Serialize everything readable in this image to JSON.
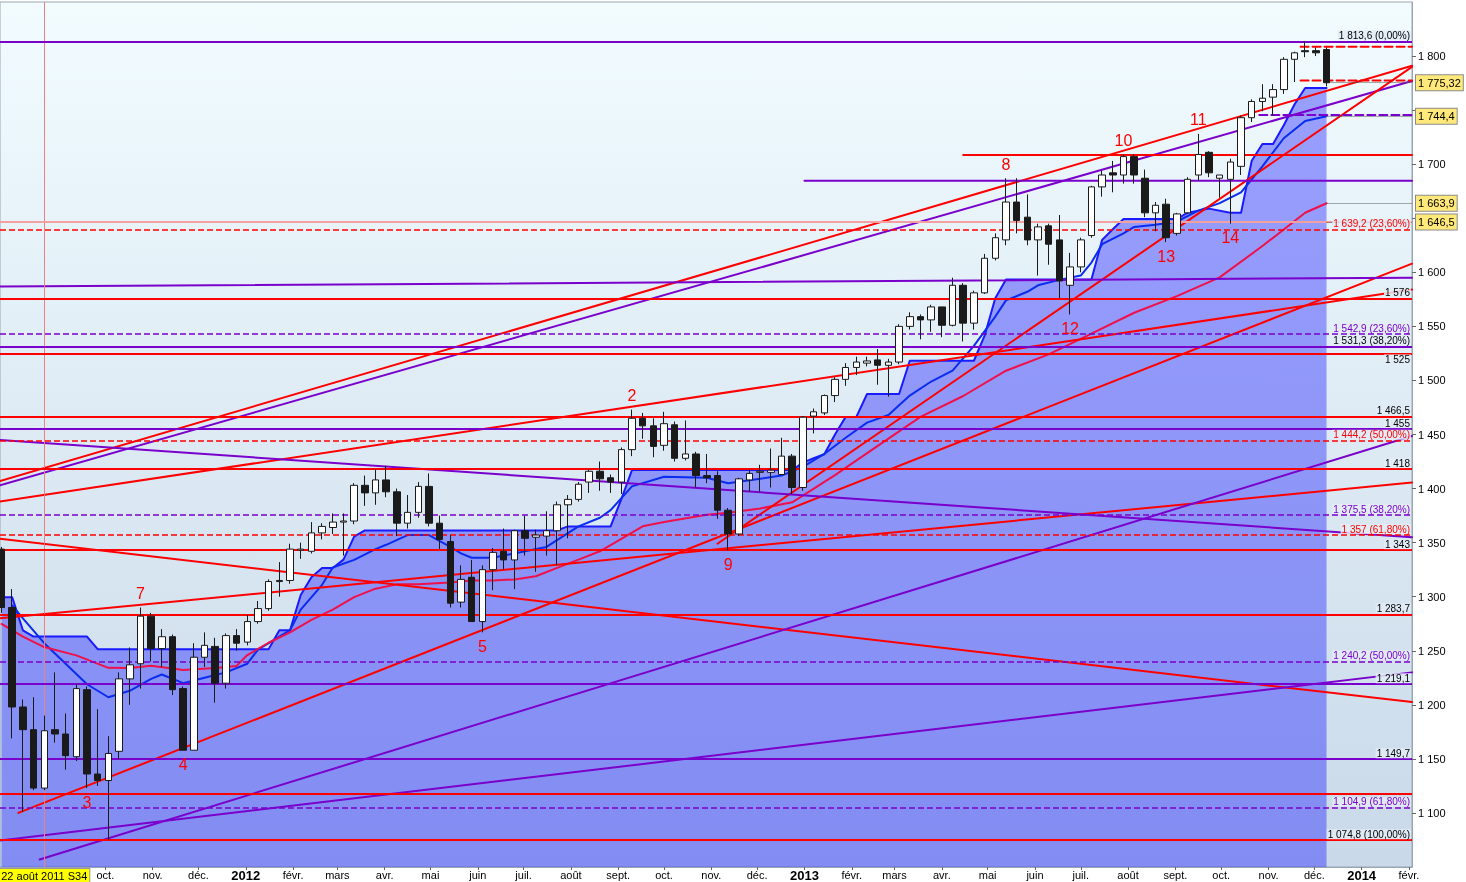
{
  "chart_data": {
    "type": "candlestick",
    "marker": "none",
    "xlim": [
      "2011-07-24",
      "2014-02-03"
    ],
    "xticks": [
      {
        "value": "2011-10-01",
        "label": "oct."
      },
      {
        "value": "2011-11-01",
        "label": "nov."
      },
      {
        "value": "2011-12-01",
        "label": "déc."
      },
      {
        "value": "2012-01-01",
        "label": "2012"
      },
      {
        "value": "2012-02-01",
        "label": "févr."
      },
      {
        "value": "2012-03-01",
        "label": "mars"
      },
      {
        "value": "2012-04-01",
        "label": "avr."
      },
      {
        "value": "2012-05-01",
        "label": "mai"
      },
      {
        "value": "2012-06-01",
        "label": "juin"
      },
      {
        "value": "2012-07-01",
        "label": "juil."
      },
      {
        "value": "2012-08-01",
        "label": "août"
      },
      {
        "value": "2012-09-01",
        "label": "sept."
      },
      {
        "value": "2012-10-01",
        "label": "oct."
      },
      {
        "value": "2012-11-01",
        "label": "nov."
      },
      {
        "value": "2012-12-01",
        "label": "déc."
      },
      {
        "value": "2013-01-01",
        "label": "2013"
      },
      {
        "value": "2013-02-01",
        "label": "févr."
      },
      {
        "value": "2013-03-01",
        "label": "mars"
      },
      {
        "value": "2013-04-01",
        "label": "avr."
      },
      {
        "value": "2013-05-01",
        "label": "mai"
      },
      {
        "value": "2013-06-01",
        "label": "juin"
      },
      {
        "value": "2013-07-01",
        "label": "juil."
      },
      {
        "value": "2013-08-01",
        "label": "août"
      },
      {
        "value": "2013-09-01",
        "label": "sept."
      },
      {
        "value": "2013-10-01",
        "label": "oct."
      },
      {
        "value": "2013-11-01",
        "label": "nov."
      },
      {
        "value": "2013-12-01",
        "label": "déc."
      },
      {
        "value": "2014-01-01",
        "label": "2014"
      },
      {
        "value": "2014-02-01",
        "label": "févr."
      }
    ],
    "ylim": [
      1050,
      1850
    ],
    "yticks": [
      {
        "value": 1100,
        "label": "1 100"
      },
      {
        "value": 1150,
        "label": "1 150"
      },
      {
        "value": 1200,
        "label": "1 200"
      },
      {
        "value": 1250,
        "label": "1 250"
      },
      {
        "value": 1300,
        "label": "1 300"
      },
      {
        "value": 1350,
        "label": "1 350"
      },
      {
        "value": 1400,
        "label": "1 400"
      },
      {
        "value": 1450,
        "label": "1 450"
      },
      {
        "value": 1500,
        "label": "1 500"
      },
      {
        "value": 1550,
        "label": "1 550"
      },
      {
        "value": 1600,
        "label": "1 600"
      },
      {
        "value": 1650,
        "label": null
      },
      {
        "value": 1700,
        "label": "1 700"
      },
      {
        "value": 1750,
        "label": null
      },
      {
        "value": 1800,
        "label": "1 800"
      }
    ],
    "series": [
      {
        "type": "area",
        "color": "#1a1aff",
        "x": [
          "2011-07-25",
          "2011-08-01",
          "2011-08-08",
          "2011-08-15",
          "2011-09-19",
          "2011-09-26",
          "2012-01-16",
          "2012-01-23",
          "2012-01-30",
          "2012-02-06",
          "2012-02-13",
          "2012-02-20",
          "2012-02-27",
          "2012-03-05",
          "2012-03-12",
          "2012-03-19",
          "2012-07-23",
          "2012-07-30",
          "2012-08-27",
          "2012-09-03",
          "2012-09-10",
          "2012-12-24",
          "2012-12-31",
          "2013-01-07",
          "2013-01-14",
          "2013-01-21",
          "2013-01-28",
          "2013-02-04",
          "2013-02-11",
          "2013-03-04",
          "2013-03-11",
          "2013-04-22",
          "2013-04-29",
          "2013-05-06",
          "2013-05-13",
          "2013-07-08",
          "2013-07-15",
          "2013-07-22",
          "2013-07-29",
          "2013-09-02",
          "2013-09-09",
          "2013-09-23",
          "2013-10-07",
          "2013-10-14",
          "2013-10-21",
          "2013-10-28",
          "2013-11-04",
          "2013-11-11",
          "2013-11-18",
          "2013-11-25",
          "2013-12-09"
        ],
        "values": [
          1299.5,
          1299.5,
          1268.9,
          1263.1,
          1263.1,
          1251.5,
          1251.5,
          1268.9,
          1268.9,
          1301.6,
          1318,
          1326.6,
          1326.6,
          1334.3,
          1355.5,
          1361.3,
          1361.3,
          1365,
          1365,
          1390.1,
          1417.1,
          1417.1,
          1424,
          1428,
          1431.7,
          1450,
          1466.3,
          1466.3,
          1487.5,
          1487.5,
          1518.2,
          1518.2,
          1541.4,
          1576.1,
          1593.4,
          1593.4,
          1630,
          1639.9,
          1649.3,
          1649.3,
          1655.1,
          1658.9,
          1655,
          1655,
          1703.2,
          1718.6,
          1718.6,
          1736,
          1755.2,
          1770.5,
          1770.5
        ]
      },
      {
        "type": "line",
        "color": "#0a2cf0",
        "x": [
          "2011-08-01",
          "2011-08-08",
          "2011-08-22",
          "2011-09-05",
          "2011-09-19",
          "2011-10-03",
          "2011-10-17",
          "2011-10-31",
          "2011-11-07",
          "2011-11-21",
          "2011-12-05",
          "2011-12-19",
          "2012-01-02",
          "2012-01-09",
          "2012-01-30",
          "2012-02-06",
          "2012-02-20",
          "2012-02-27",
          "2012-03-12",
          "2012-03-26",
          "2012-04-02",
          "2012-04-16",
          "2012-04-30",
          "2012-05-14",
          "2012-05-21",
          "2012-05-28",
          "2012-06-11",
          "2012-06-18",
          "2012-07-02",
          "2012-07-16",
          "2012-08-06",
          "2012-08-20",
          "2012-08-27",
          "2012-09-10",
          "2012-10-01",
          "2012-10-29",
          "2012-11-12",
          "2012-12-03",
          "2012-12-17",
          "2012-12-31",
          "2013-01-14",
          "2013-01-28",
          "2013-02-11",
          "2013-02-25",
          "2013-03-11",
          "2013-03-25",
          "2013-04-08",
          "2013-04-22",
          "2013-05-06",
          "2013-05-13",
          "2013-05-27",
          "2013-06-03",
          "2013-06-17",
          "2013-07-01",
          "2013-07-08",
          "2013-07-15",
          "2013-07-29",
          "2013-08-05",
          "2013-08-19",
          "2013-09-02",
          "2013-09-16",
          "2013-09-30",
          "2013-10-14",
          "2013-10-28",
          "2013-11-11",
          "2013-11-25",
          "2013-12-09"
        ],
        "values": [
          1292,
          1280,
          1257,
          1238,
          1219,
          1207,
          1213,
          1224,
          1228,
          1220,
          1225,
          1230,
          1238,
          1251,
          1269,
          1288,
          1311,
          1327,
          1334,
          1344,
          1348,
          1357,
          1357,
          1346,
          1340,
          1336,
          1336,
          1338,
          1342,
          1346,
          1365,
          1373,
          1380,
          1402,
          1411,
          1410,
          1405,
          1409,
          1412,
          1420,
          1432,
          1447,
          1461,
          1468,
          1486,
          1499,
          1509,
          1532,
          1559,
          1574,
          1582,
          1588,
          1593,
          1597,
          1609,
          1626,
          1636,
          1642,
          1644,
          1647,
          1657,
          1664,
          1674,
          1698,
          1724,
          1740,
          1744.4
        ]
      },
      {
        "type": "line",
        "color": "#f0104a",
        "x": [
          "2011-07-25",
          "2011-08-08",
          "2011-08-22",
          "2011-09-12",
          "2011-10-03",
          "2011-10-17",
          "2011-10-31",
          "2011-11-21",
          "2011-12-12",
          "2011-12-26",
          "2012-01-02",
          "2012-01-16",
          "2012-01-30",
          "2012-02-13",
          "2012-02-27",
          "2012-03-12",
          "2012-03-26",
          "2012-04-09",
          "2012-04-23",
          "2012-05-14",
          "2012-05-28",
          "2012-06-11",
          "2012-06-25",
          "2012-07-09",
          "2012-07-23",
          "2012-08-06",
          "2012-08-20",
          "2012-09-03",
          "2012-09-17",
          "2012-10-01",
          "2012-10-29",
          "2012-11-12",
          "2012-12-03",
          "2012-12-24",
          "2013-01-21",
          "2013-02-18",
          "2013-03-18",
          "2013-04-15",
          "2013-05-13",
          "2013-06-10",
          "2013-07-08",
          "2013-08-05",
          "2013-09-02",
          "2013-09-30",
          "2013-10-28",
          "2013-11-11",
          "2013-11-25",
          "2013-12-09"
        ],
        "values": [
          1274.8,
          1263.1,
          1253.4,
          1245.7,
          1234.2,
          1234,
          1236.1,
          1232.2,
          1234,
          1236,
          1246,
          1257.4,
          1267,
          1278.5,
          1288.1,
          1299.6,
          1307.4,
          1311.4,
          1311.4,
          1313.2,
          1315,
          1315,
          1316,
          1318.9,
          1326.6,
          1334.3,
          1342,
          1353.5,
          1365.1,
          1369,
          1375.8,
          1377.7,
          1381.6,
          1387.3,
          1412.4,
          1439.5,
          1466.3,
          1485.6,
          1509,
          1524.1,
          1543.3,
          1562.6,
          1578,
          1595.3,
          1624.3,
          1639.6,
          1655.1,
          1663.9
        ]
      },
      {
        "type": "line",
        "color": "#ff0000",
        "x": [
          "2011-07-24",
          "2014-02-03"
        ],
        "values": [
          1407,
          1791
        ]
      },
      {
        "type": "line",
        "color": "#7a00cc",
        "x": [
          "2011-07-24",
          "2014-02-03"
        ],
        "values": [
          1403,
          1777
        ]
      },
      {
        "type": "line",
        "color": "#ff0000",
        "x": [
          "2011-08-05",
          "2014-02-03"
        ],
        "values": [
          1100,
          1608
        ]
      },
      {
        "type": "line",
        "color": "#ff0000",
        "x": [
          "2012-11-05",
          "2014-02-03"
        ],
        "values": [
          1349,
          1790
        ]
      },
      {
        "type": "line",
        "color": "#ff0000",
        "x": [
          "2011-07-24",
          "2014-02-03"
        ],
        "values": [
          1280,
          1405.6
        ]
      },
      {
        "type": "line",
        "color": "#ff0000",
        "x": [
          "2011-07-24",
          "2014-02-03"
        ],
        "values": [
          1353.5,
          1202.5
        ]
      },
      {
        "type": "line",
        "color": "#ff0000",
        "x": [
          "2011-07-24",
          "2014-02-03"
        ],
        "values": [
          1388,
          1584
        ]
      },
      {
        "type": "line",
        "color": "#7a00cc",
        "x": [
          "2011-07-24",
          "2014-02-03"
        ],
        "values": [
          1445,
          1355
        ]
      },
      {
        "type": "line",
        "color": "#7a00cc",
        "x": [
          "2011-08-19",
          "2014-02-03"
        ],
        "values": [
          1057,
          1448.6
        ]
      },
      {
        "type": "line",
        "color": "#7a00cc",
        "x": [
          "2011-07-24",
          "2014-02-03"
        ],
        "values": [
          1074.4,
          1230
        ]
      },
      {
        "type": "line",
        "color": "#7a00cc",
        "x": [
          "2011-07-24",
          "2014-02-03"
        ],
        "values": [
          1586.8,
          1595
        ]
      },
      {
        "type": "line",
        "color": "#ff0000",
        "x": [
          "2013-04-15",
          "2014-02-03"
        ],
        "values": [
          1708.5,
          1708.5
        ]
      },
      {
        "type": "line",
        "color": "#7a00cc",
        "x": [
          "2013-01-01",
          "2014-02-03"
        ],
        "values": [
          1684.7,
          1684.7
        ]
      },
      {
        "type": "line",
        "color": "#ff0000",
        "line_style": "dashed",
        "x": [
          "2013-11-22",
          "2014-02-03"
        ],
        "values": [
          1808.5,
          1808.5
        ]
      },
      {
        "type": "line",
        "color": "#ff0000",
        "line_style": "dashed",
        "x": [
          "2013-11-22",
          "2014-02-03"
        ],
        "values": [
          1777.4,
          1777.4
        ]
      },
      {
        "type": "line",
        "color": "#7a00cc",
        "line_style": "dashed",
        "x": [
          "2013-10-26",
          "2014-02-03"
        ],
        "values": [
          1745.4,
          1745.4
        ]
      },
      {
        "color": "#1a1a1a",
        "x": [
          "2011-07-25",
          "2011-08-01",
          "2011-08-08",
          "2011-08-15",
          "2011-08-22",
          "2011-08-29",
          "2011-09-05",
          "2011-09-12",
          "2011-09-19",
          "2011-09-26",
          "2011-10-03",
          "2011-10-10",
          "2011-10-17",
          "2011-10-24",
          "2011-10-31",
          "2011-11-07",
          "2011-11-14",
          "2011-11-21",
          "2011-11-28",
          "2011-12-05",
          "2011-12-12",
          "2011-12-19",
          "2011-12-26",
          "2012-01-02",
          "2012-01-09",
          "2012-01-16",
          "2012-01-23",
          "2012-01-30",
          "2012-02-06",
          "2012-02-13",
          "2012-02-20",
          "2012-02-27",
          "2012-03-05",
          "2012-03-12",
          "2012-03-19",
          "2012-03-26",
          "2012-04-02",
          "2012-04-09",
          "2012-04-16",
          "2012-04-23",
          "2012-04-30",
          "2012-05-07",
          "2012-05-14",
          "2012-05-21",
          "2012-05-28",
          "2012-06-04",
          "2012-06-11",
          "2012-06-18",
          "2012-06-25",
          "2012-07-02",
          "2012-07-09",
          "2012-07-16",
          "2012-07-23",
          "2012-07-30",
          "2012-08-06",
          "2012-08-13",
          "2012-08-20",
          "2012-08-27",
          "2012-09-03",
          "2012-09-10",
          "2012-09-17",
          "2012-09-24",
          "2012-10-01",
          "2012-10-08",
          "2012-10-15",
          "2012-10-22",
          "2012-10-29",
          "2012-11-05",
          "2012-11-12",
          "2012-11-19",
          "2012-11-26",
          "2012-12-03",
          "2012-12-10",
          "2012-12-17",
          "2012-12-24",
          "2012-12-31",
          "2013-01-07",
          "2013-01-14",
          "2013-01-21",
          "2013-01-28",
          "2013-02-04",
          "2013-02-11",
          "2013-02-18",
          "2013-02-25",
          "2013-03-04",
          "2013-03-11",
          "2013-03-18",
          "2013-03-25",
          "2013-04-01",
          "2013-04-08",
          "2013-04-15",
          "2013-04-22",
          "2013-04-29",
          "2013-05-06",
          "2013-05-13",
          "2013-05-20",
          "2013-05-27",
          "2013-06-03",
          "2013-06-10",
          "2013-06-17",
          "2013-06-24",
          "2013-07-01",
          "2013-07-08",
          "2013-07-15",
          "2013-07-22",
          "2013-07-29",
          "2013-08-05",
          "2013-08-12",
          "2013-08-19",
          "2013-08-26",
          "2013-09-02",
          "2013-09-09",
          "2013-09-16",
          "2013-09-23",
          "2013-09-30",
          "2013-10-07",
          "2013-10-14",
          "2013-10-21",
          "2013-10-28",
          "2013-11-04",
          "2013-11-11",
          "2013-11-18",
          "2013-11-25",
          "2013-12-02",
          "2013-12-09"
        ],
        "ohlc": [
          [
            1344,
            1346,
            1285,
            1290
          ],
          [
            1290,
            1307,
            1169,
            1198
          ],
          [
            1198,
            1205,
            1101,
            1177
          ],
          [
            1177,
            1207,
            1121,
            1123
          ],
          [
            1123,
            1190,
            1121,
            1176
          ],
          [
            1177,
            1230,
            1165,
            1173
          ],
          [
            1173,
            1192,
            1140,
            1153
          ],
          [
            1152,
            1219,
            1148,
            1215
          ],
          [
            1214,
            1217,
            1123,
            1136
          ],
          [
            1136,
            1196,
            1125,
            1130
          ],
          [
            1130,
            1171,
            1074.8,
            1155
          ],
          [
            1157,
            1230,
            1150,
            1224
          ],
          [
            1224,
            1253,
            1200,
            1237
          ],
          [
            1238,
            1290,
            1215,
            1282
          ],
          [
            1282,
            1285,
            1240,
            1252
          ],
          [
            1252,
            1270,
            1235,
            1263
          ],
          [
            1263,
            1265,
            1209,
            1214
          ],
          [
            1215,
            1217,
            1158,
            1158
          ],
          [
            1158,
            1257,
            1158,
            1244
          ],
          [
            1244,
            1267,
            1235,
            1255
          ],
          [
            1254,
            1262,
            1202,
            1220
          ],
          [
            1220,
            1266,
            1215,
            1264
          ],
          [
            1264,
            1270,
            1250,
            1257
          ],
          [
            1258,
            1283,
            1255,
            1277
          ],
          [
            1277,
            1296,
            1275,
            1289
          ],
          [
            1289,
            1316,
            1287,
            1314
          ],
          [
            1314,
            1332,
            1300,
            1315
          ],
          [
            1315,
            1349,
            1312,
            1344
          ],
          [
            1343,
            1350,
            1335,
            1344
          ],
          [
            1342,
            1369,
            1340,
            1359
          ],
          [
            1359,
            1368,
            1353,
            1365
          ],
          [
            1364,
            1377,
            1358,
            1369
          ],
          [
            1369,
            1377,
            1338,
            1370
          ],
          [
            1370,
            1405,
            1367,
            1403
          ],
          [
            1403,
            1412,
            1384,
            1396
          ],
          [
            1396,
            1418,
            1385,
            1408
          ],
          [
            1408,
            1421,
            1392,
            1397
          ],
          [
            1397,
            1400,
            1356,
            1368
          ],
          [
            1368,
            1394,
            1363,
            1378
          ],
          [
            1378,
            1406,
            1373,
            1402
          ],
          [
            1402,
            1414,
            1365,
            1368
          ],
          [
            1368,
            1375,
            1344,
            1353
          ],
          [
            1351,
            1357,
            1290,
            1294
          ],
          [
            1295,
            1329,
            1290,
            1316
          ],
          [
            1318,
            1334,
            1277,
            1277
          ],
          [
            1277,
            1329,
            1267,
            1325
          ],
          [
            1325,
            1345,
            1306,
            1341
          ],
          [
            1342,
            1363,
            1325,
            1334
          ],
          [
            1334,
            1362,
            1307,
            1361
          ],
          [
            1361,
            1375,
            1338,
            1354
          ],
          [
            1355,
            1362,
            1323,
            1357
          ],
          [
            1356,
            1379,
            1338,
            1361
          ],
          [
            1361,
            1388,
            1329,
            1385
          ],
          [
            1385,
            1394,
            1354,
            1390
          ],
          [
            1390,
            1406,
            1388,
            1404
          ],
          [
            1406,
            1418,
            1396,
            1416
          ],
          [
            1416,
            1425,
            1398,
            1409
          ],
          [
            1410,
            1413,
            1396,
            1406
          ],
          [
            1406,
            1438,
            1395,
            1436
          ],
          [
            1436,
            1473,
            1430,
            1465
          ],
          [
            1465,
            1470,
            1446,
            1458
          ],
          [
            1458,
            1465,
            1429,
            1439
          ],
          [
            1440,
            1471,
            1435,
            1460
          ],
          [
            1459,
            1462,
            1425,
            1428
          ],
          [
            1428,
            1463,
            1426,
            1432
          ],
          [
            1432,
            1434,
            1401,
            1412
          ],
          [
            1412,
            1432,
            1405,
            1410
          ],
          [
            1412,
            1416,
            1372,
            1380
          ],
          [
            1380,
            1382,
            1343,
            1358
          ],
          [
            1358,
            1410,
            1356,
            1409
          ],
          [
            1408,
            1418,
            1397,
            1414
          ],
          [
            1415,
            1422,
            1397,
            1416
          ],
          [
            1415,
            1437,
            1401,
            1417
          ],
          [
            1413,
            1447,
            1413,
            1430
          ],
          [
            1430,
            1432,
            1395,
            1401
          ],
          [
            1401,
            1467,
            1398,
            1466
          ],
          [
            1467,
            1474,
            1451,
            1471
          ],
          [
            1470,
            1487,
            1468,
            1486
          ],
          [
            1486,
            1503,
            1480,
            1501
          ],
          [
            1501,
            1516,
            1495,
            1512
          ],
          [
            1512,
            1522,
            1505,
            1517
          ],
          [
            1516,
            1522,
            1513,
            1518
          ],
          [
            1519,
            1529,
            1496,
            1514
          ],
          [
            1514,
            1520,
            1485,
            1517
          ],
          [
            1517,
            1552,
            1515,
            1550
          ],
          [
            1550,
            1563,
            1547,
            1559
          ],
          [
            1559,
            1561,
            1538,
            1556
          ],
          [
            1556,
            1570,
            1545,
            1568
          ],
          [
            1568,
            1568,
            1540,
            1551
          ],
          [
            1551,
            1595,
            1550,
            1588
          ],
          [
            1588,
            1590,
            1536,
            1553
          ],
          [
            1553,
            1583,
            1547,
            1581
          ],
          [
            1581,
            1617,
            1580,
            1613
          ],
          [
            1613,
            1636,
            1611,
            1632
          ],
          [
            1630,
            1687,
            1625,
            1665
          ],
          [
            1665,
            1687,
            1636,
            1648
          ],
          [
            1651,
            1672,
            1625,
            1630
          ],
          [
            1630,
            1645,
            1597,
            1642
          ],
          [
            1643,
            1645,
            1607,
            1626
          ],
          [
            1630,
            1653,
            1576,
            1592
          ],
          [
            1588,
            1618,
            1561,
            1605
          ],
          [
            1605,
            1632,
            1600,
            1630
          ],
          [
            1634,
            1680,
            1632,
            1679
          ],
          [
            1679,
            1694,
            1670,
            1690
          ],
          [
            1692,
            1703,
            1674,
            1690
          ],
          [
            1690,
            1709,
            1682,
            1707
          ],
          [
            1707,
            1709,
            1682,
            1690
          ],
          [
            1687,
            1695,
            1651,
            1655
          ],
          [
            1655,
            1665,
            1638,
            1662
          ],
          [
            1663,
            1668,
            1628,
            1632
          ],
          [
            1636,
            1655,
            1634,
            1654
          ],
          [
            1655,
            1688,
            1654,
            1686
          ],
          [
            1690,
            1728,
            1685,
            1709
          ],
          [
            1711,
            1712,
            1688,
            1692
          ],
          [
            1687,
            1690,
            1669,
            1690
          ],
          [
            1686,
            1705,
            1645,
            1702
          ],
          [
            1698,
            1745,
            1690,
            1743
          ],
          [
            1743,
            1760,
            1739,
            1758
          ],
          [
            1758,
            1774,
            1749,
            1761
          ],
          [
            1762,
            1774,
            1745,
            1769
          ],
          [
            1769,
            1799,
            1765,
            1797
          ],
          [
            1797,
            1804,
            1776,
            1803
          ],
          [
            1805,
            1813.6,
            1799,
            1804
          ],
          [
            1805,
            1808,
            1800,
            1803
          ],
          [
            1806,
            1808,
            1772,
            1775.32
          ]
        ]
      }
    ],
    "ref_lines": [
      {
        "axis": "x",
        "value": "2011-08-22",
        "label": "22 août 2011 S34",
        "color": "#f08080"
      },
      {
        "axis": "y",
        "value": 1813.6,
        "label": "1 813,6 (0,00%)",
        "color": "#7a00cc",
        "line_style": "solid"
      },
      {
        "axis": "y",
        "value": 1646.5,
        "color": "#f4a0a0",
        "line_style": "solid"
      },
      {
        "axis": "y",
        "value": 1639.2,
        "label": "1 639,2 (23,60%)",
        "color": "#ff0000",
        "line_style": "dashed"
      },
      {
        "axis": "y",
        "value": 1576,
        "label": "1 576",
        "color": "#ff0000",
        "line_style": "solid"
      },
      {
        "axis": "y",
        "value": 1542.9,
        "label": "1 542,9 (23,60%)",
        "color": "#7a00cc",
        "line_style": "dashed"
      },
      {
        "axis": "y",
        "value": 1531.3,
        "label": "1 531,3 (38,20%)",
        "color": "#7a00cc",
        "line_style": "solid"
      },
      {
        "axis": "y",
        "value": 1525,
        "label": "1 525",
        "color": "#ff0000",
        "line_style": "solid"
      },
      {
        "axis": "y",
        "value": 1466.5,
        "label": "1 466,5",
        "color": "#ff0000",
        "line_style": "solid"
      },
      {
        "axis": "y",
        "value": 1455,
        "label": "1 455",
        "color": "#7a00cc",
        "line_style": "solid"
      },
      {
        "axis": "y",
        "value": 1444.2,
        "label": "1 444,2 (50,00%)",
        "color": "#ff0000",
        "line_style": "dashed"
      },
      {
        "axis": "y",
        "value": 1418,
        "label": "1 418",
        "color": "#ff0000",
        "line_style": "solid"
      },
      {
        "axis": "y",
        "value": 1375.5,
        "label": "1 375,5 (38,20%)",
        "color": "#7a00cc",
        "line_style": "dashed"
      },
      {
        "axis": "y",
        "value": 1357,
        "label": "1 357 (61,80%)",
        "color": "#ff0000",
        "line_style": "dashed"
      },
      {
        "axis": "y",
        "value": 1343,
        "label": "1 343",
        "color": "#ff0000",
        "line_style": "solid"
      },
      {
        "axis": "y",
        "value": 1283.7,
        "label": "1 283,7",
        "color": "#ff0000",
        "line_style": "solid"
      },
      {
        "axis": "y",
        "value": 1240.2,
        "label": "1 240,2 (50,00%)",
        "color": "#7a00cc",
        "line_style": "dashed"
      },
      {
        "axis": "y",
        "value": 1219.1,
        "label": "1 219,1",
        "color": "#7a00cc",
        "line_style": "solid"
      },
      {
        "axis": "y",
        "value": 1149.7,
        "label": "1 149,7",
        "color": "#7a00cc",
        "line_style": "solid"
      },
      {
        "axis": "y",
        "value": 1118,
        "color": "#ff0000",
        "line_style": "solid"
      },
      {
        "axis": "y",
        "value": 1104.9,
        "label": "1 104,9 (61,80%)",
        "color": "#7a00cc",
        "line_style": "dashed"
      },
      {
        "axis": "y",
        "value": 1074.8,
        "label": "1 074,8 (100,00%)",
        "color": "#ff0000",
        "line_style": "solid"
      }
    ],
    "annotations": [
      {
        "text": "2",
        "x": "2012-09-10",
        "y": 1473
      },
      {
        "text": "3",
        "x": "2011-09-19",
        "y": 1123
      },
      {
        "text": "4",
        "x": "2011-11-21",
        "y": 1158
      },
      {
        "text": "5",
        "x": "2012-06-04",
        "y": 1267
      },
      {
        "text": "7",
        "x": "2011-10-24",
        "y": 1290
      },
      {
        "text": "8",
        "x": "2013-05-13",
        "y": 1687
      },
      {
        "text": "9",
        "x": "2012-11-12",
        "y": 1343
      },
      {
        "text": "10",
        "x": "2013-07-29",
        "y": 1709
      },
      {
        "text": "11",
        "x": "2013-09-16",
        "y": 1728
      },
      {
        "text": "12",
        "x": "2013-06-24",
        "y": 1561
      },
      {
        "text": "13",
        "x": "2013-08-26",
        "y": 1628
      },
      {
        "text": "14",
        "x": "2013-10-07",
        "y": 1645
      },
      {
        "text": "1 775,32",
        "x": "2013-12-09",
        "y": 1775.32
      },
      {
        "text": "1 744,4",
        "x": "2013-12-09",
        "y": 1744.4
      },
      {
        "text": "1 663,9",
        "x": "2013-12-09",
        "y": 1663.9
      },
      {
        "text": "1 646,5",
        "x": "2013-12-09",
        "y": 1646.5
      }
    ]
  }
}
